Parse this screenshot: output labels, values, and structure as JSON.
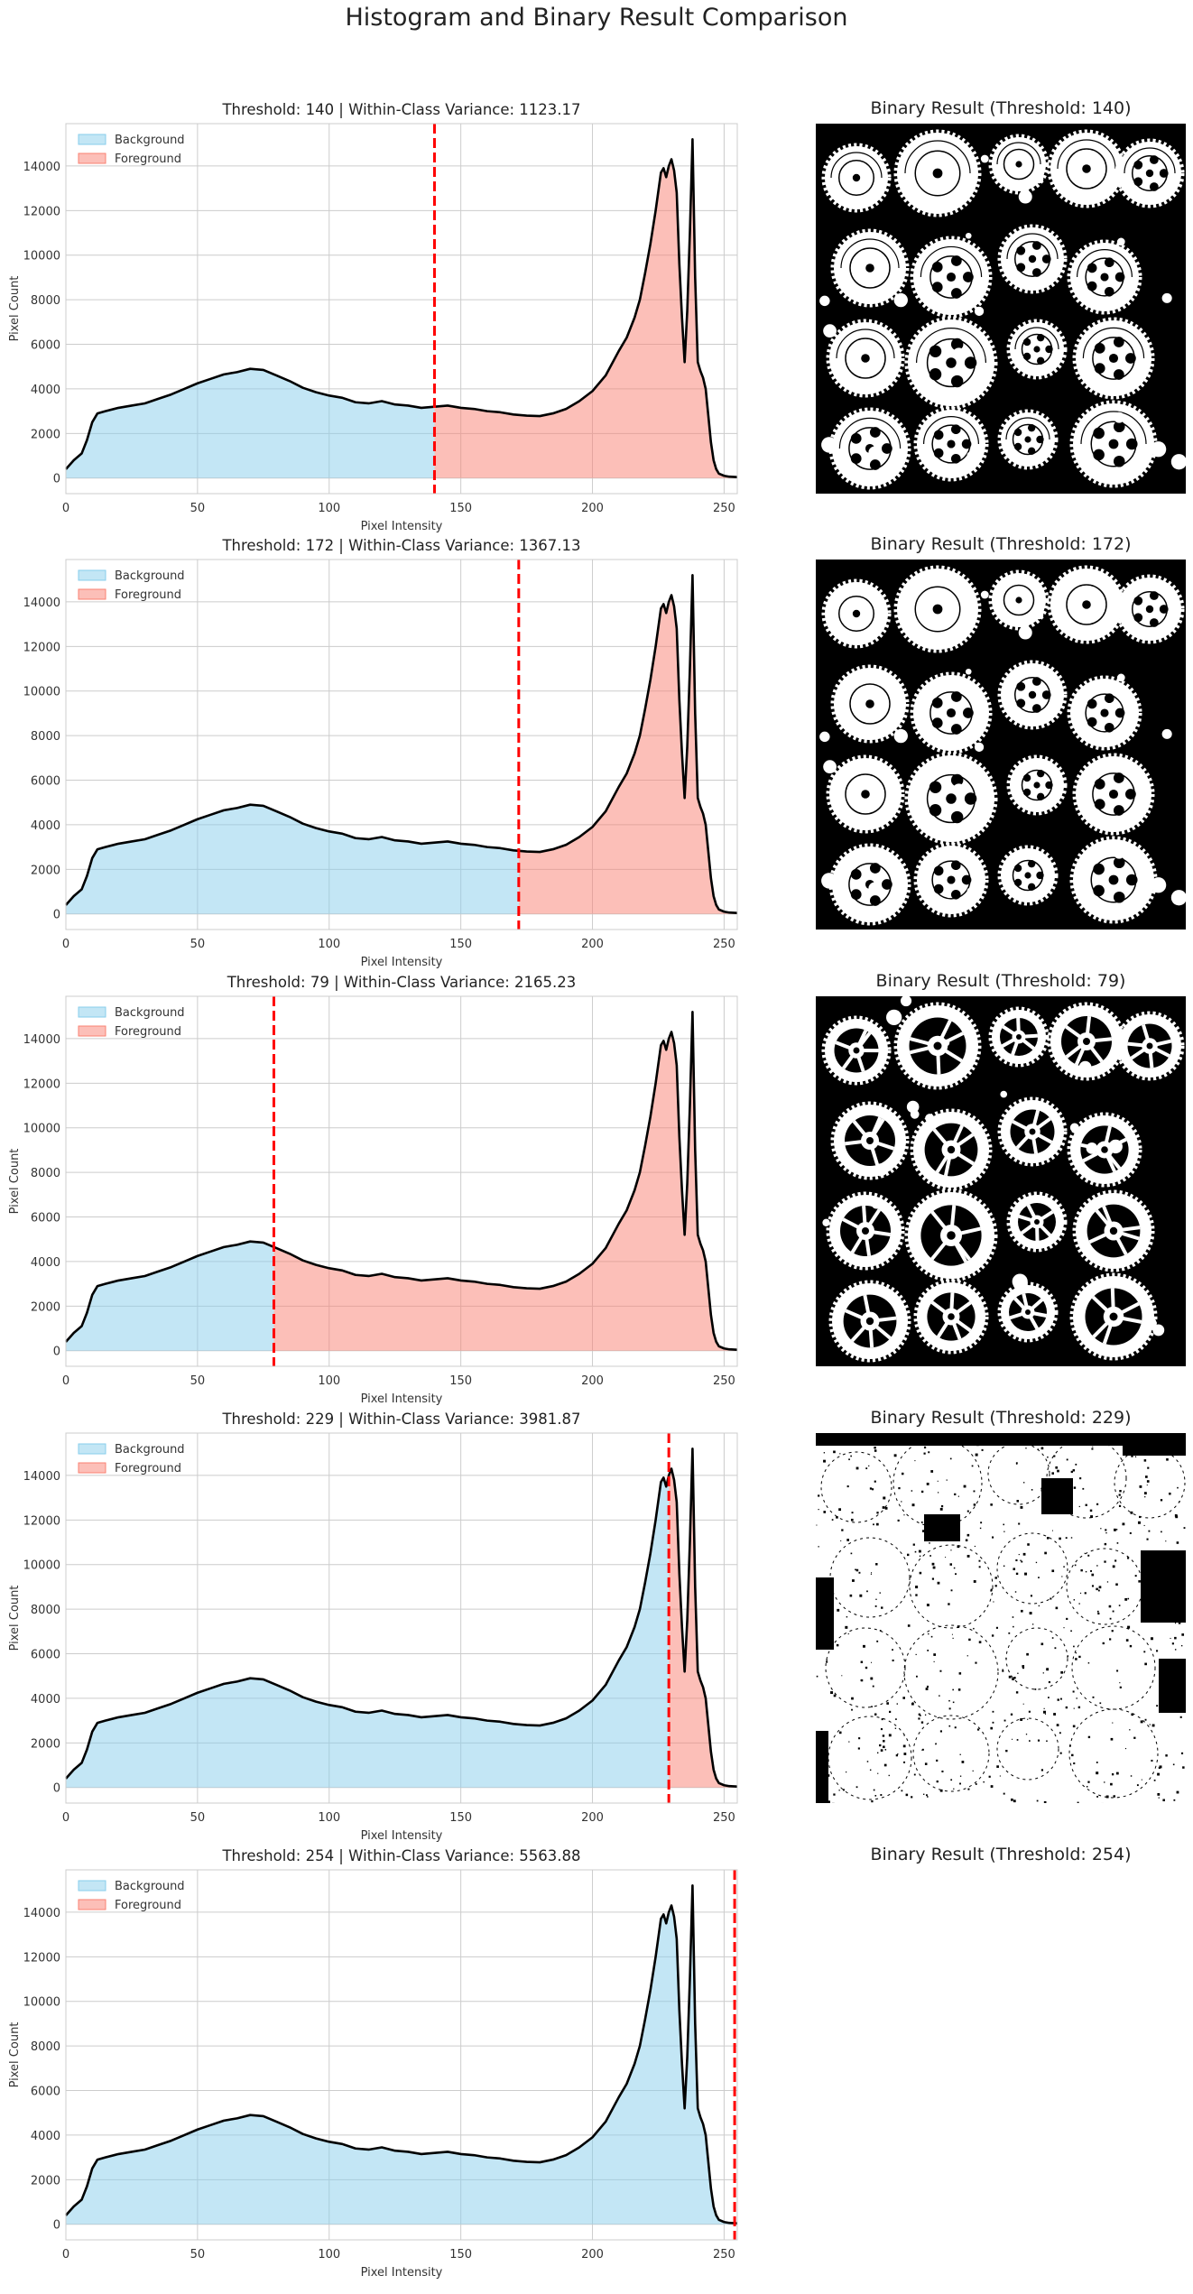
{
  "suptitle": "Histogram and Binary Result Comparison",
  "colors": {
    "background_fill": "#87ceeb",
    "foreground_fill": "#fa8072",
    "histogram_line": "#000000",
    "threshold_line": "#ff0000",
    "grid": "#cccccc"
  },
  "chart_data": [
    {
      "type": "area",
      "title": "Threshold: 140 | Within-Class Variance: 1123.17",
      "threshold": 140,
      "xlabel": "Pixel Intensity",
      "ylabel": "Pixel Count",
      "xlim": [
        0,
        255
      ],
      "ylim": [
        -700,
        15900
      ],
      "xticks": [
        0,
        50,
        100,
        150,
        200,
        250
      ],
      "yticks": [
        0,
        2000,
        4000,
        6000,
        8000,
        10000,
        12000,
        14000
      ],
      "legend": [
        "Background",
        "Foreground"
      ],
      "legend_position": "top-left",
      "grid": true,
      "x": [
        0,
        3,
        6,
        8,
        10,
        12,
        15,
        20,
        25,
        30,
        35,
        40,
        45,
        50,
        55,
        60,
        65,
        70,
        75,
        80,
        85,
        90,
        95,
        100,
        105,
        110,
        115,
        120,
        125,
        130,
        135,
        140,
        145,
        150,
        155,
        160,
        165,
        170,
        175,
        180,
        185,
        190,
        195,
        200,
        205,
        210,
        213,
        216,
        218,
        220,
        222,
        224,
        226,
        227,
        228,
        229,
        230,
        231,
        232,
        233,
        234,
        235,
        236,
        237,
        238,
        239,
        240,
        241,
        242,
        243,
        244,
        245,
        246,
        247,
        248,
        250,
        252,
        255
      ],
      "y": [
        400,
        800,
        1100,
        1700,
        2500,
        2900,
        3000,
        3150,
        3250,
        3350,
        3550,
        3750,
        4000,
        4250,
        4450,
        4650,
        4750,
        4900,
        4850,
        4600,
        4350,
        4050,
        3850,
        3700,
        3600,
        3400,
        3350,
        3450,
        3300,
        3250,
        3150,
        3200,
        3250,
        3150,
        3100,
        3000,
        2950,
        2850,
        2800,
        2780,
        2900,
        3100,
        3450,
        3900,
        4600,
        5700,
        6300,
        7200,
        8000,
        9200,
        10500,
        12000,
        13700,
        13900,
        13500,
        14000,
        14300,
        13800,
        12800,
        9600,
        7200,
        5200,
        7500,
        11000,
        15200,
        9000,
        5200,
        4800,
        4500,
        4000,
        2800,
        1600,
        800,
        400,
        200,
        100,
        60,
        40
      ]
    },
    {
      "type": "area",
      "title": "Threshold: 172 | Within-Class Variance: 1367.13",
      "threshold": 172,
      "xlabel": "Pixel Intensity",
      "ylabel": "Pixel Count",
      "xlim": [
        0,
        255
      ],
      "ylim": [
        -700,
        15900
      ],
      "xticks": [
        0,
        50,
        100,
        150,
        200,
        250
      ],
      "yticks": [
        0,
        2000,
        4000,
        6000,
        8000,
        10000,
        12000,
        14000
      ],
      "legend": [
        "Background",
        "Foreground"
      ],
      "legend_position": "top-left",
      "grid": true
    },
    {
      "type": "area",
      "title": "Threshold: 79 | Within-Class Variance: 2165.23",
      "threshold": 79,
      "xlabel": "Pixel Intensity",
      "ylabel": "Pixel Count",
      "xlim": [
        0,
        255
      ],
      "ylim": [
        -700,
        15900
      ],
      "xticks": [
        0,
        50,
        100,
        150,
        200,
        250
      ],
      "yticks": [
        0,
        2000,
        4000,
        6000,
        8000,
        10000,
        12000,
        14000
      ],
      "legend": [
        "Background",
        "Foreground"
      ],
      "legend_position": "top-left",
      "grid": true
    },
    {
      "type": "area",
      "title": "Threshold: 229 | Within-Class Variance: 3981.87",
      "threshold": 229,
      "xlabel": "Pixel Intensity",
      "ylabel": "Pixel Count",
      "xlim": [
        0,
        255
      ],
      "ylim": [
        -700,
        15900
      ],
      "xticks": [
        0,
        50,
        100,
        150,
        200,
        250
      ],
      "yticks": [
        0,
        2000,
        4000,
        6000,
        8000,
        10000,
        12000,
        14000
      ],
      "legend": [
        "Background",
        "Foreground"
      ],
      "legend_position": "top-left",
      "grid": true
    },
    {
      "type": "area",
      "title": "Threshold: 254 | Within-Class Variance: 5563.88",
      "threshold": 254,
      "xlabel": "Pixel Intensity",
      "ylabel": "Pixel Count",
      "xlim": [
        0,
        255
      ],
      "ylim": [
        -700,
        15900
      ],
      "xticks": [
        0,
        50,
        100,
        150,
        200,
        250
      ],
      "yticks": [
        0,
        2000,
        4000,
        6000,
        8000,
        10000,
        12000,
        14000
      ],
      "legend": [
        "Background",
        "Foreground"
      ],
      "legend_position": "top-left",
      "grid": true
    }
  ],
  "binary_images": [
    {
      "title": "Binary Result (Threshold: 140)",
      "threshold": 140
    },
    {
      "title": "Binary Result (Threshold: 172)",
      "threshold": 172
    },
    {
      "title": "Binary Result (Threshold: 79)",
      "threshold": 79
    },
    {
      "title": "Binary Result (Threshold: 229)",
      "threshold": 229
    },
    {
      "title": "Binary Result (Threshold: 254)",
      "threshold": 254
    }
  ]
}
